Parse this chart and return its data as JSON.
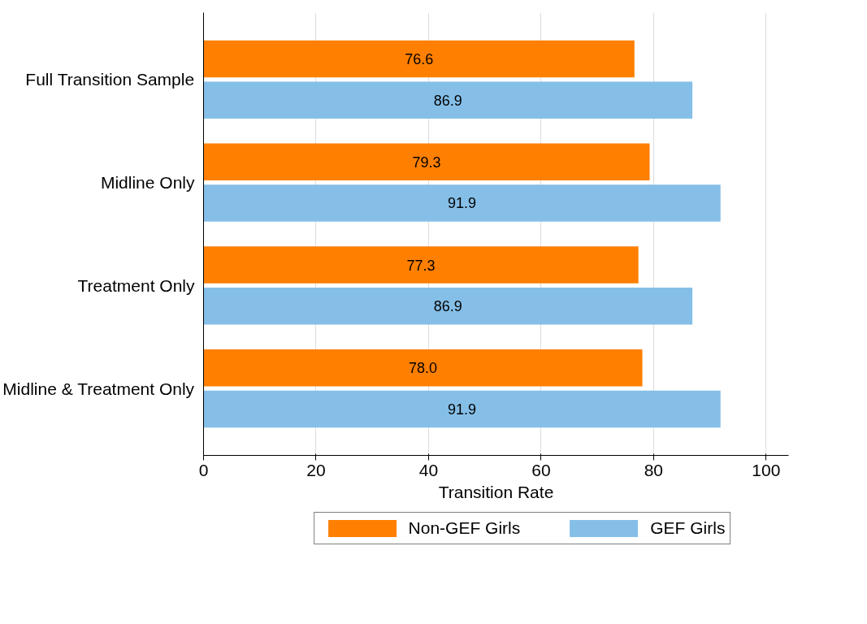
{
  "chart_data": {
    "type": "bar",
    "orientation": "horizontal",
    "xlabel": "Transition Rate",
    "categories": [
      "Full Transition Sample",
      "Midline Only",
      "Treatment Only",
      "Midline & Treatment Only"
    ],
    "series": [
      {
        "name": "Non-GEF Girls",
        "color": "#ff7f00",
        "values": [
          76.6,
          79.3,
          77.3,
          78.0
        ],
        "value_labels": [
          "76.6",
          "79.3",
          "77.3",
          "78.0"
        ]
      },
      {
        "name": "GEF Girls",
        "color": "#85bfe8",
        "values": [
          86.9,
          91.9,
          86.9,
          91.9
        ],
        "value_labels": [
          "86.9",
          "91.9",
          "86.9",
          "91.9"
        ]
      }
    ],
    "xlim": [
      0,
      104
    ],
    "xticks": [
      0,
      20,
      40,
      60,
      80,
      100
    ],
    "grid": "x",
    "legend": "bottom"
  }
}
